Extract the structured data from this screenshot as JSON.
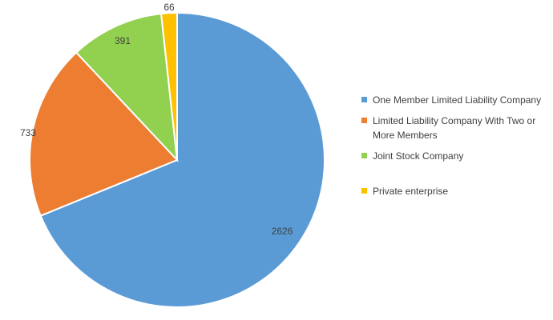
{
  "chart_data": {
    "type": "pie",
    "title": "",
    "categories": [
      "One Member Limited Liability Company",
      "Limited Liability Company With Two or More Members",
      "Joint Stock Company",
      "Private enterprise"
    ],
    "values": [
      2626,
      733,
      391,
      66
    ],
    "value_labels": [
      "2626",
      "733",
      "391",
      "66"
    ],
    "colors": [
      "#5B9BD5",
      "#ED7D31",
      "#92D050",
      "#FFC000"
    ],
    "legend": {
      "position": "right",
      "entries": [
        {
          "label": "One Member Limited Liability Company",
          "color": "#5B9BD5"
        },
        {
          "label": "Limited Liability Company With Two or More Members",
          "color": "#ED7D31"
        },
        {
          "label": "Joint Stock Company",
          "color": "#92D050"
        },
        {
          "label": "Private enterprise",
          "color": "#FFC000"
        }
      ]
    },
    "start_angle_deg": 0,
    "direction": "clockwise"
  }
}
